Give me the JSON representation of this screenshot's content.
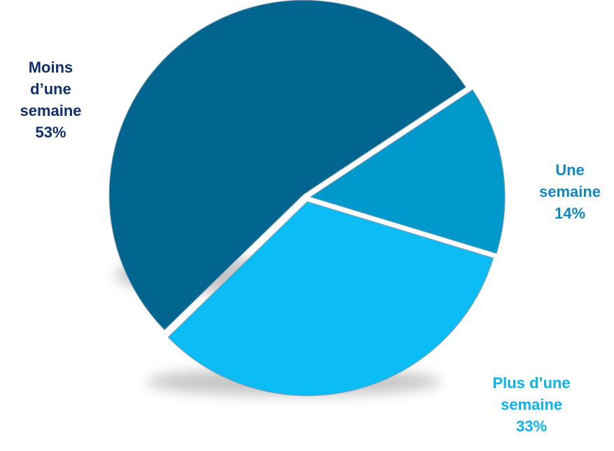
{
  "chart_data": {
    "type": "pie",
    "slices": [
      {
        "label": "Moins d’une semaine",
        "lines": [
          "Moins",
          "d’une",
          "semaine",
          "53%"
        ],
        "value": 53,
        "color": "#00668f",
        "label_color": "#0f2f6e"
      },
      {
        "label": "Une semaine",
        "lines": [
          "Une",
          "semaine",
          "14%"
        ],
        "value": 14,
        "color": "#0099cc",
        "label_color": "#1187c4"
      },
      {
        "label": "Plus d’une semaine",
        "lines": [
          "Plus d’une",
          "semaine",
          "33%"
        ],
        "value": 33,
        "color": "#0cbcf5",
        "label_color": "#0cb3ea"
      }
    ]
  }
}
